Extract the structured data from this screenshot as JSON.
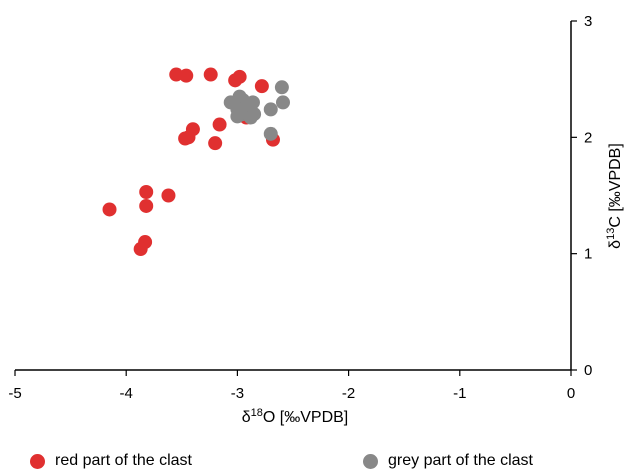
{
  "chart_data": {
    "type": "scatter",
    "xlim": [
      -5,
      0
    ],
    "ylim": [
      0,
      3
    ],
    "x_ticks": [
      -5,
      -4,
      -3,
      -2,
      -1,
      0
    ],
    "y_ticks": [
      0,
      1,
      2,
      3
    ],
    "x_tick_labels": [
      "-5",
      "-4",
      "-3",
      "-2",
      "-1",
      "0"
    ],
    "y_tick_labels": [
      "0",
      "1",
      "2",
      "3"
    ],
    "xlabel": "δ18O [‰VPDB]",
    "ylabel": "δ13C [‰VPDB]",
    "grid": false,
    "legend_position": "bottom",
    "series": [
      {
        "name": "red part of the clast",
        "color": "#e03030",
        "points": [
          [
            -3.55,
            2.54
          ],
          [
            -3.46,
            2.53
          ],
          [
            -3.24,
            2.54
          ],
          [
            -2.98,
            2.52
          ],
          [
            -3.02,
            2.49
          ],
          [
            -2.78,
            2.44
          ],
          [
            -3.4,
            2.07
          ],
          [
            -3.16,
            2.11
          ],
          [
            -3.44,
            2.0
          ],
          [
            -3.47,
            1.99
          ],
          [
            -3.2,
            1.95
          ],
          [
            -2.68,
            1.98
          ],
          [
            -2.92,
            2.17
          ],
          [
            -4.15,
            1.38
          ],
          [
            -3.82,
            1.53
          ],
          [
            -3.82,
            1.41
          ],
          [
            -3.62,
            1.5
          ],
          [
            -3.83,
            1.1
          ],
          [
            -3.87,
            1.04
          ]
        ]
      },
      {
        "name": "grey part of the clast",
        "color": "#888888",
        "points": [
          [
            -2.6,
            2.43
          ],
          [
            -2.59,
            2.3
          ],
          [
            -2.7,
            2.24
          ],
          [
            -2.98,
            2.35
          ],
          [
            -2.95,
            2.32
          ],
          [
            -3.06,
            2.3
          ],
          [
            -2.86,
            2.3
          ],
          [
            -2.92,
            2.27
          ],
          [
            -3.0,
            2.24
          ],
          [
            -2.85,
            2.2
          ],
          [
            -2.95,
            2.2
          ],
          [
            -3.0,
            2.18
          ],
          [
            -2.88,
            2.17
          ],
          [
            -2.7,
            2.03
          ]
        ]
      }
    ]
  }
}
